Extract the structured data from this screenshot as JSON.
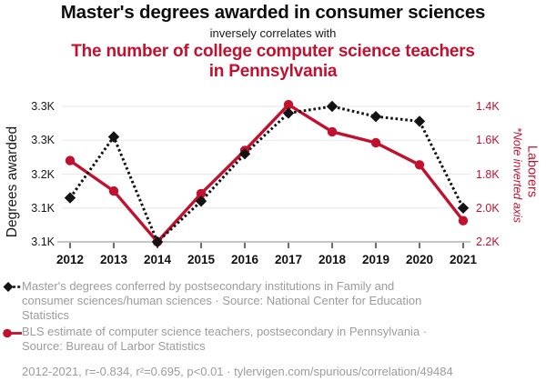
{
  "page": {
    "title": "Master's degrees awarded in consumer sciences",
    "subtitle": "inversely correlates with",
    "secondary_title": "The number of college computer science teachers in Pennsylvania"
  },
  "colors": {
    "accent_red": "#C2112F",
    "series_black": "#131313",
    "legend_gray": "#9C9C9C",
    "gridline": "#EBEBEB",
    "axis_line": "#C6C6C6",
    "tick_mark": "#3A3A3A"
  },
  "chart_data": {
    "type": "line",
    "x": [
      2012,
      2013,
      2014,
      2015,
      2016,
      2017,
      2018,
      2019,
      2020,
      2021
    ],
    "series": [
      {
        "name": "Master's degrees conferred by postsecondary institutions in Family and consumer sciences/human sciences",
        "axis": "left",
        "style": "dashed",
        "marker": "diamond",
        "color": "#131313",
        "values": [
          3165,
          3255,
          3100,
          3160,
          3230,
          3290,
          3300,
          3285,
          3278,
          3150
        ]
      },
      {
        "name": "BLS estimate of computer science teachers, postsecondary in Pennsylvania",
        "axis": "right",
        "style": "solid",
        "marker": "circle",
        "color": "#C2112F",
        "values": [
          1720,
          1900,
          2200,
          1915,
          1660,
          1390,
          1550,
          1615,
          1745,
          2075
        ]
      }
    ],
    "left_axis": {
      "label": "Degrees awarded",
      "tick_labels": [
        "3.3K",
        "3.3K",
        "3.2K",
        "3.1K",
        "3.1K"
      ],
      "range_top": 3300,
      "range_bottom": 3100,
      "inverted": false
    },
    "right_axis": {
      "label": "Laborers",
      "note": "*Note inverted axis",
      "tick_labels": [
        "1.4K",
        "1.6K",
        "1.8K",
        "2.0K",
        "2.2K"
      ],
      "range_top": 1400,
      "range_bottom": 2200,
      "inverted": true
    },
    "grid": true,
    "legend_position": "bottom"
  },
  "legend": {
    "entries": [
      {
        "marker": "black-diamond-dashed",
        "lines": [
          "Master's degrees conferred by postsecondary institutions in Family and",
          "consumer sciences/human sciences · Source: National Center for Education",
          "Statistics"
        ]
      },
      {
        "marker": "red-circle-solid",
        "lines": [
          "BLS estimate of computer science teachers, postsecondary in Pennsylvania ·",
          "Source: Bureau of Larbor Statistics"
        ]
      }
    ],
    "footnote": "2012-2021, r=-0.834, r²=0.695, p<0.01 · tylervigen.com/spurious/correlation/49484"
  }
}
